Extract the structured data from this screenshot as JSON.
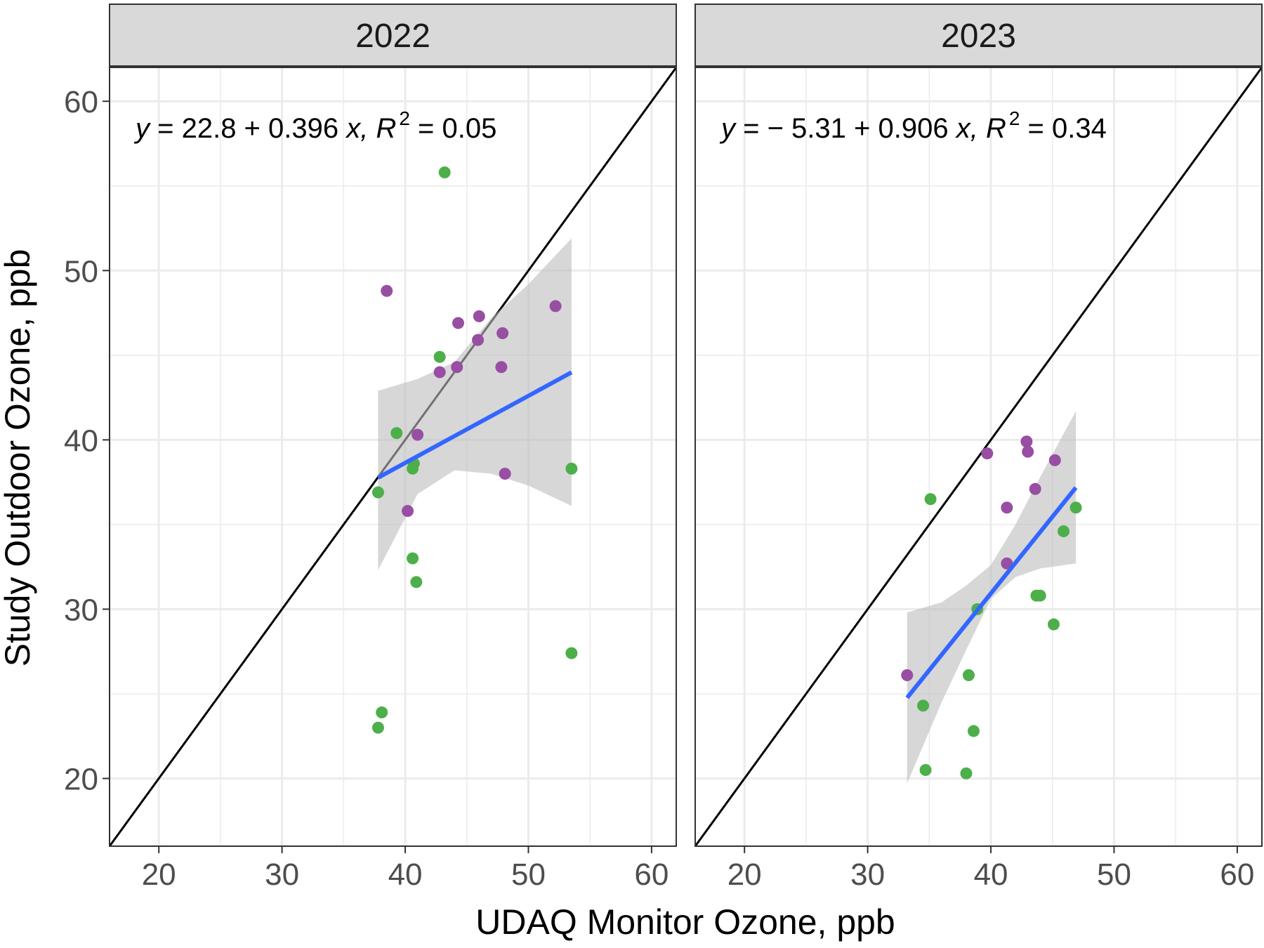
{
  "chart_data": {
    "type": "scatter",
    "xlabel": "UDAQ Monitor Ozone, ppb",
    "ylabel": "Study Outdoor Ozone, ppb",
    "xlim": [
      16,
      62
    ],
    "ylim": [
      16,
      62
    ],
    "xticks": [
      20,
      30,
      40,
      50,
      60
    ],
    "yticks": [
      20,
      30,
      40,
      50,
      60
    ],
    "grid": true,
    "identity_line": true,
    "colors": {
      "green": "#4daf4a",
      "purple": "#984ea3",
      "fit_line": "#3366ff",
      "ribbon": "#bdbdbd",
      "strip_bg": "#d9d9d9",
      "grid": "#ebebeb"
    },
    "panels": [
      {
        "strip_label": "2022",
        "equation": {
          "y_var": "y",
          "body": " = 22.8 + 0.396 ",
          "x_var": "x",
          "r_label": ", R",
          "r_sup": "2",
          "r_val": " = 0.05"
        },
        "fit": {
          "x_range": [
            37.8,
            53.5
          ],
          "intercept": 22.8,
          "slope": 0.396,
          "ribbon": [
            [
              37.8,
              32.3,
              42.9
            ],
            [
              41,
              36.8,
              43.6
            ],
            [
              44,
              38.2,
              44.6
            ],
            [
              47,
              38.0,
              47.2
            ],
            [
              50,
              37.3,
              49.2
            ],
            [
              53.5,
              36.1,
              51.9
            ]
          ]
        },
        "points": [
          {
            "x": 43.2,
            "y": 55.8,
            "color": "green"
          },
          {
            "x": 38.5,
            "y": 48.8,
            "color": "purple"
          },
          {
            "x": 46.0,
            "y": 47.3,
            "color": "purple"
          },
          {
            "x": 52.2,
            "y": 47.9,
            "color": "purple"
          },
          {
            "x": 44.3,
            "y": 46.9,
            "color": "purple"
          },
          {
            "x": 47.9,
            "y": 46.3,
            "color": "purple"
          },
          {
            "x": 45.9,
            "y": 45.9,
            "color": "purple"
          },
          {
            "x": 42.8,
            "y": 44.9,
            "color": "green"
          },
          {
            "x": 44.2,
            "y": 44.3,
            "color": "purple"
          },
          {
            "x": 47.8,
            "y": 44.3,
            "color": "purple"
          },
          {
            "x": 42.8,
            "y": 44.0,
            "color": "purple"
          },
          {
            "x": 39.3,
            "y": 40.4,
            "color": "green"
          },
          {
            "x": 41.0,
            "y": 40.3,
            "color": "purple"
          },
          {
            "x": 40.7,
            "y": 38.6,
            "color": "green"
          },
          {
            "x": 40.6,
            "y": 38.3,
            "color": "green"
          },
          {
            "x": 53.5,
            "y": 38.3,
            "color": "green"
          },
          {
            "x": 48.1,
            "y": 38.0,
            "color": "purple"
          },
          {
            "x": 37.8,
            "y": 36.9,
            "color": "green"
          },
          {
            "x": 40.2,
            "y": 35.8,
            "color": "purple"
          },
          {
            "x": 40.6,
            "y": 33.0,
            "color": "green"
          },
          {
            "x": 40.9,
            "y": 31.6,
            "color": "green"
          },
          {
            "x": 53.5,
            "y": 27.4,
            "color": "green"
          },
          {
            "x": 38.1,
            "y": 23.9,
            "color": "green"
          },
          {
            "x": 37.8,
            "y": 23.0,
            "color": "green"
          }
        ]
      },
      {
        "strip_label": "2023",
        "equation": {
          "y_var": "y",
          "body": " = − 5.31 + 0.906 ",
          "x_var": "x",
          "r_label": ", R",
          "r_sup": "2",
          "r_val": " = 0.34"
        },
        "fit": {
          "x_range": [
            33.2,
            46.9
          ],
          "intercept": -5.31,
          "slope": 0.906,
          "ribbon": [
            [
              33.2,
              19.7,
              29.8
            ],
            [
              36,
              24.5,
              30.4
            ],
            [
              38,
              27.6,
              31.4
            ],
            [
              40,
              30.6,
              32.6
            ],
            [
              42,
              31.9,
              35.0
            ],
            [
              44,
              32.4,
              37.8
            ],
            [
              46.9,
              32.7,
              41.7
            ]
          ]
        },
        "points": [
          {
            "x": 42.9,
            "y": 39.9,
            "color": "purple"
          },
          {
            "x": 43.0,
            "y": 39.3,
            "color": "purple"
          },
          {
            "x": 39.7,
            "y": 39.2,
            "color": "purple"
          },
          {
            "x": 45.2,
            "y": 38.8,
            "color": "purple"
          },
          {
            "x": 43.6,
            "y": 37.1,
            "color": "purple"
          },
          {
            "x": 35.1,
            "y": 36.5,
            "color": "green"
          },
          {
            "x": 41.3,
            "y": 36.0,
            "color": "purple"
          },
          {
            "x": 46.9,
            "y": 36.0,
            "color": "green"
          },
          {
            "x": 45.9,
            "y": 34.6,
            "color": "green"
          },
          {
            "x": 41.3,
            "y": 32.7,
            "color": "purple"
          },
          {
            "x": 43.7,
            "y": 30.8,
            "color": "green"
          },
          {
            "x": 44.0,
            "y": 30.8,
            "color": "green"
          },
          {
            "x": 38.9,
            "y": 30.0,
            "color": "green"
          },
          {
            "x": 45.1,
            "y": 29.1,
            "color": "green"
          },
          {
            "x": 33.2,
            "y": 26.1,
            "color": "purple"
          },
          {
            "x": 38.2,
            "y": 26.1,
            "color": "green"
          },
          {
            "x": 34.5,
            "y": 24.3,
            "color": "green"
          },
          {
            "x": 38.6,
            "y": 22.8,
            "color": "green"
          },
          {
            "x": 34.7,
            "y": 20.5,
            "color": "green"
          },
          {
            "x": 38.0,
            "y": 20.3,
            "color": "green"
          }
        ]
      }
    ]
  }
}
